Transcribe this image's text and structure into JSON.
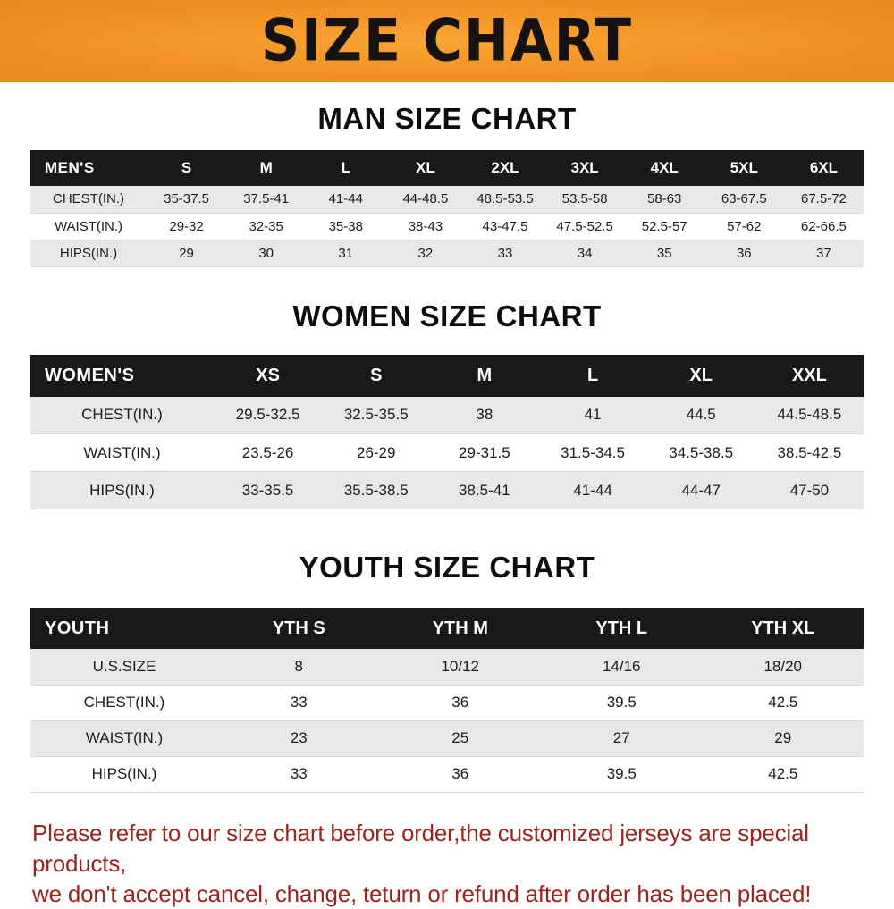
{
  "banner": {
    "title": "SIZE CHART"
  },
  "colors": {
    "banner_orange": "#f19020",
    "table_header_black": "#191919",
    "row_stripe_gray": "#e8e8e8",
    "disclaimer_red": "#9b2420"
  },
  "sections": [
    {
      "heading": "MAN SIZE CHART",
      "table": {
        "header": [
          "MEN'S",
          "S",
          "M",
          "L",
          "XL",
          "2XL",
          "3XL",
          "4XL",
          "5XL",
          "6XL"
        ],
        "rows": [
          [
            "CHEST(IN.)",
            "35-37.5",
            "37.5-41",
            "41-44",
            "44-48.5",
            "48.5-53.5",
            "53.5-58",
            "58-63",
            "63-67.5",
            "67.5-72"
          ],
          [
            "WAIST(IN.)",
            "29-32",
            "32-35",
            "35-38",
            "38-43",
            "43-47.5",
            "47.5-52.5",
            "52.5-57",
            "57-62",
            "62-66.5"
          ],
          [
            "HIPS(IN.)",
            "29",
            "30",
            "31",
            "32",
            "33",
            "34",
            "35",
            "36",
            "37"
          ]
        ]
      }
    },
    {
      "heading": "WOMEN SIZE CHART",
      "table": {
        "header": [
          "WOMEN'S",
          "XS",
          "S",
          "M",
          "L",
          "XL",
          "XXL"
        ],
        "rows": [
          [
            "CHEST(IN.)",
            "29.5-32.5",
            "32.5-35.5",
            "38",
            "41",
            "44.5",
            "44.5-48.5"
          ],
          [
            "WAIST(IN.)",
            "23.5-26",
            "26-29",
            "29-31.5",
            "31.5-34.5",
            "34.5-38.5",
            "38.5-42.5"
          ],
          [
            "HIPS(IN.)",
            "33-35.5",
            "35.5-38.5",
            "38.5-41",
            "41-44",
            "44-47",
            "47-50"
          ]
        ]
      }
    },
    {
      "heading": "YOUTH SIZE CHART",
      "table": {
        "header": [
          "YOUTH",
          "YTH S",
          "YTH M",
          "YTH L",
          "YTH XL"
        ],
        "rows": [
          [
            "U.S.SIZE",
            "8",
            "10/12",
            "14/16",
            "18/20"
          ],
          [
            "CHEST(IN.)",
            "33",
            "36",
            "39.5",
            "42.5"
          ],
          [
            "WAIST(IN.)",
            "23",
            "25",
            "27",
            "29"
          ],
          [
            "HIPS(IN.)",
            "33",
            "36",
            "39.5",
            "42.5"
          ]
        ]
      }
    }
  ],
  "disclaimer": {
    "line1": "Please refer to our size chart before order,the customized jerseys are special products,",
    "line2": "we don't accept cancel, change, teturn or refund after order has been placed!"
  }
}
